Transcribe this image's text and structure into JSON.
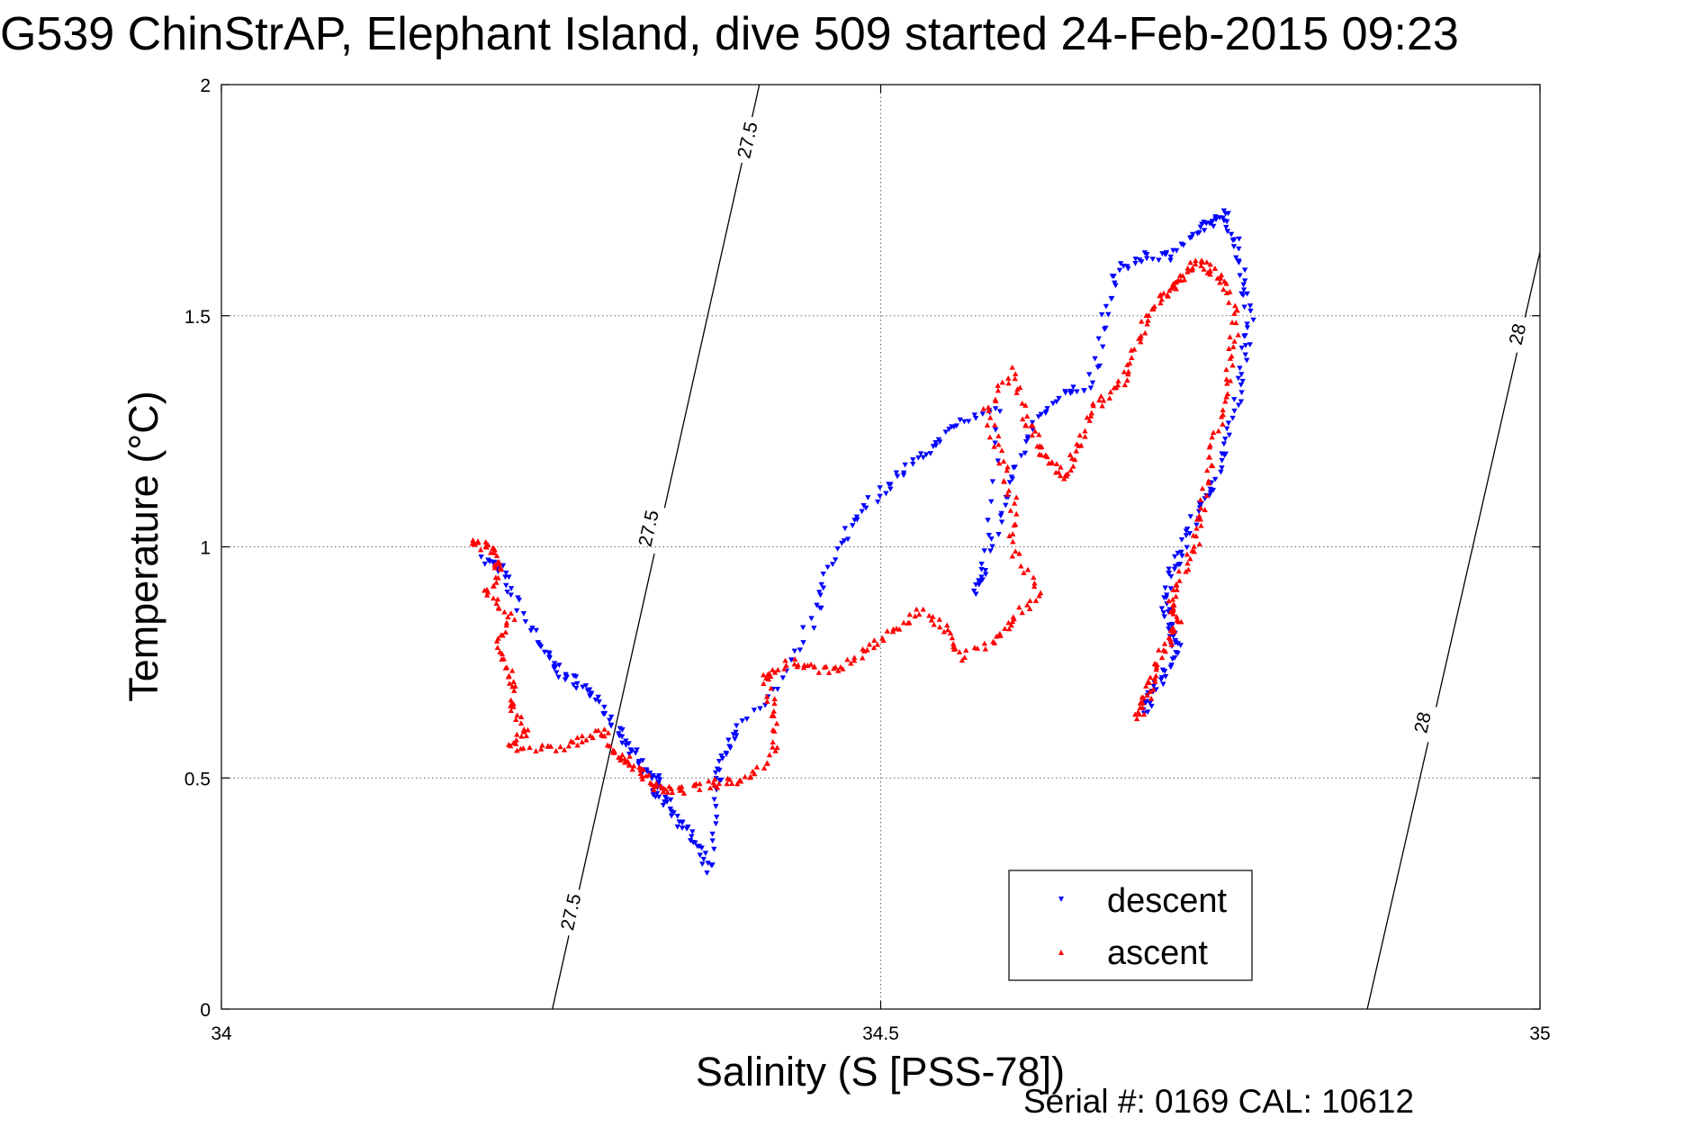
{
  "chart_data": {
    "type": "scatter",
    "title": "G539 ChinStrAP, Elephant Island, dive 509 started 24-Feb-2015 09:23",
    "xlabel": "Salinity (S [PSS-78])",
    "ylabel": "Temperature (°C)",
    "xlim": [
      34,
      35
    ],
    "ylim": [
      0,
      2
    ],
    "x_ticks": [
      "34",
      "34.5",
      "35"
    ],
    "y_ticks": [
      "0",
      "0.5",
      "1",
      "1.5",
      "2"
    ],
    "grid": true,
    "legend_position": "bottom-right",
    "footer": "Serial #: 0169 CAL: 10612",
    "density_contours": [
      {
        "sigma": "27.5",
        "points": [
          [
            34.251,
            0.0
          ],
          [
            34.408,
            2.0
          ]
        ],
        "labels": [
          {
            "text": "27.5",
            "s": 34.265,
            "t": 0.21
          },
          {
            "text": "27.5",
            "s": 34.324,
            "t": 1.04
          },
          {
            "text": "27.5",
            "s": 34.399,
            "t": 1.88
          }
        ]
      },
      {
        "sigma": "28",
        "points": [
          [
            34.869,
            0.0
          ],
          [
            35.0,
            1.638
          ]
        ],
        "labels": [
          {
            "text": "28",
            "s": 34.911,
            "t": 0.62
          },
          {
            "text": "28",
            "s": 34.983,
            "t": 1.46
          }
        ]
      }
    ],
    "series": [
      {
        "name": "descent",
        "color": "#0000ff",
        "marker": "triangle-down",
        "points": [
          [
            34.2,
            0.97
          ],
          [
            34.21,
            0.96
          ],
          [
            34.22,
            0.9
          ],
          [
            34.24,
            0.8
          ],
          [
            34.25,
            0.75
          ],
          [
            34.26,
            0.72
          ],
          [
            34.275,
            0.7
          ],
          [
            34.29,
            0.65
          ],
          [
            34.3,
            0.6
          ],
          [
            34.31,
            0.56
          ],
          [
            34.32,
            0.52
          ],
          [
            34.33,
            0.5
          ],
          [
            34.33,
            0.47
          ],
          [
            34.34,
            0.44
          ],
          [
            34.35,
            0.4
          ],
          [
            34.36,
            0.35
          ],
          [
            34.37,
            0.3
          ],
          [
            34.375,
            0.48
          ],
          [
            34.38,
            0.55
          ],
          [
            34.39,
            0.6
          ],
          [
            34.42,
            0.7
          ],
          [
            34.45,
            0.85
          ],
          [
            34.46,
            0.95
          ],
          [
            34.48,
            1.06
          ],
          [
            34.5,
            1.12
          ],
          [
            34.52,
            1.17
          ],
          [
            34.54,
            1.22
          ],
          [
            34.56,
            1.27
          ],
          [
            34.59,
            1.3
          ],
          [
            34.58,
            0.95
          ],
          [
            34.57,
            0.9
          ],
          [
            34.59,
            1.05
          ],
          [
            34.6,
            1.17
          ],
          [
            34.62,
            1.28
          ],
          [
            34.64,
            1.33
          ],
          [
            34.66,
            1.35
          ],
          [
            34.67,
            1.5
          ],
          [
            34.68,
            1.6
          ],
          [
            34.7,
            1.63
          ],
          [
            34.72,
            1.63
          ],
          [
            34.74,
            1.68
          ],
          [
            34.75,
            1.7
          ],
          [
            34.76,
            1.72
          ],
          [
            34.77,
            1.66
          ],
          [
            34.775,
            1.58
          ],
          [
            34.78,
            1.5
          ],
          [
            34.775,
            1.4
          ],
          [
            34.77,
            1.3
          ],
          [
            34.76,
            1.2
          ],
          [
            34.75,
            1.12
          ],
          [
            34.74,
            1.08
          ],
          [
            34.73,
            1.0
          ],
          [
            34.72,
            0.95
          ],
          [
            34.715,
            0.88
          ],
          [
            34.72,
            0.82
          ],
          [
            34.725,
            0.78
          ],
          [
            34.715,
            0.72
          ],
          [
            34.705,
            0.68
          ],
          [
            34.7,
            0.64
          ]
        ]
      },
      {
        "name": "ascent",
        "color": "#ff0000",
        "marker": "triangle-up",
        "points": [
          [
            34.19,
            1.01
          ],
          [
            34.2,
            1.0
          ],
          [
            34.21,
            0.98
          ],
          [
            34.21,
            0.95
          ],
          [
            34.2,
            0.9
          ],
          [
            34.22,
            0.85
          ],
          [
            34.21,
            0.78
          ],
          [
            34.22,
            0.72
          ],
          [
            34.22,
            0.65
          ],
          [
            34.23,
            0.6
          ],
          [
            34.22,
            0.57
          ],
          [
            34.25,
            0.56
          ],
          [
            34.27,
            0.58
          ],
          [
            34.29,
            0.6
          ],
          [
            34.3,
            0.55
          ],
          [
            34.31,
            0.53
          ],
          [
            34.32,
            0.51
          ],
          [
            34.33,
            0.48
          ],
          [
            34.34,
            0.47
          ],
          [
            34.36,
            0.48
          ],
          [
            34.38,
            0.49
          ],
          [
            34.4,
            0.5
          ],
          [
            34.42,
            0.55
          ],
          [
            34.42,
            0.65
          ],
          [
            34.41,
            0.72
          ],
          [
            34.43,
            0.75
          ],
          [
            34.45,
            0.74
          ],
          [
            34.47,
            0.73
          ],
          [
            34.49,
            0.78
          ],
          [
            34.51,
            0.82
          ],
          [
            34.53,
            0.86
          ],
          [
            34.55,
            0.82
          ],
          [
            34.56,
            0.76
          ],
          [
            34.59,
            0.8
          ],
          [
            34.6,
            0.84
          ],
          [
            34.62,
            0.9
          ],
          [
            34.6,
            1.0
          ],
          [
            34.6,
            1.1
          ],
          [
            34.59,
            1.2
          ],
          [
            34.58,
            1.3
          ],
          [
            34.6,
            1.38
          ],
          [
            34.61,
            1.28
          ],
          [
            34.62,
            1.22
          ],
          [
            34.63,
            1.18
          ],
          [
            34.64,
            1.15
          ],
          [
            34.65,
            1.22
          ],
          [
            34.66,
            1.3
          ],
          [
            34.68,
            1.34
          ],
          [
            34.69,
            1.4
          ],
          [
            34.7,
            1.48
          ],
          [
            34.71,
            1.53
          ],
          [
            34.72,
            1.56
          ],
          [
            34.73,
            1.59
          ],
          [
            34.74,
            1.62
          ],
          [
            34.75,
            1.6
          ],
          [
            34.76,
            1.58
          ],
          [
            34.77,
            1.5
          ],
          [
            34.765,
            1.4
          ],
          [
            34.76,
            1.3
          ],
          [
            34.75,
            1.2
          ],
          [
            34.745,
            1.1
          ],
          [
            34.74,
            1.02
          ],
          [
            34.73,
            0.95
          ],
          [
            34.72,
            0.88
          ],
          [
            34.725,
            0.84
          ],
          [
            34.72,
            0.8
          ],
          [
            34.71,
            0.75
          ],
          [
            34.705,
            0.7
          ],
          [
            34.7,
            0.66
          ],
          [
            34.695,
            0.63
          ]
        ]
      }
    ]
  }
}
